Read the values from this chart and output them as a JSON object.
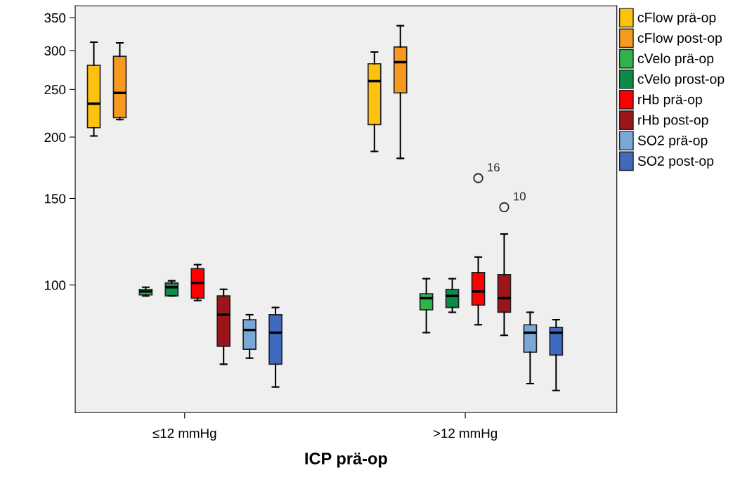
{
  "chart_data": {
    "type": "box",
    "xlabel": "ICP prä-op",
    "categories": [
      "≤12 mmHg",
      ">12 mmHg"
    ],
    "log": true,
    "ylim": [
      55,
      370
    ],
    "yticks": [
      100,
      150,
      200,
      250,
      300,
      350
    ],
    "grid": false,
    "legend": "top right",
    "series": [
      {
        "name": "cFlow prä-op",
        "color": "#fdc10e",
        "boxes": [
          {
            "low": 201,
            "q1": 209,
            "median": 234,
            "q3": 280,
            "high": 312
          },
          {
            "low": 187,
            "q1": 212,
            "median": 260,
            "q3": 282,
            "high": 298
          }
        ]
      },
      {
        "name": "cFlow post-op",
        "color": "#f7991f",
        "boxes": [
          {
            "low": 217,
            "q1": 219,
            "median": 246,
            "q3": 292,
            "high": 311
          },
          {
            "low": 181,
            "q1": 246,
            "median": 284,
            "q3": 305,
            "high": 337
          }
        ]
      },
      {
        "name": "cVelo prä-op",
        "color": "#2fb34a",
        "boxes": [
          {
            "low": 95,
            "q1": 95.5,
            "median": 97,
            "q3": 98,
            "high": 99
          },
          {
            "low": 80,
            "q1": 89,
            "median": 94,
            "q3": 96,
            "high": 103
          }
        ]
      },
      {
        "name": "cVelo prost-op",
        "color": "#0c8a48",
        "boxes": [
          {
            "low": 95,
            "q1": 95,
            "median": 99,
            "q3": 101,
            "high": 102
          },
          {
            "low": 88,
            "q1": 90,
            "median": 95,
            "q3": 98,
            "high": 103
          }
        ]
      },
      {
        "name": "rHb prä-op",
        "color": "#ff0000",
        "boxes": [
          {
            "low": 93,
            "q1": 94,
            "median": 101,
            "q3": 108,
            "high": 110
          },
          {
            "low": 83,
            "q1": 91,
            "median": 97,
            "q3": 106,
            "high": 114,
            "outliers": [
              165
            ]
          }
        ]
      },
      {
        "name": "rHb post-op",
        "color": "#9c1619",
        "boxes": [
          {
            "low": 69,
            "q1": 75,
            "median": 87,
            "q3": 95,
            "high": 98
          },
          {
            "low": 79,
            "q1": 88,
            "median": 94,
            "q3": 105,
            "high": 127,
            "outliers": [
              144
            ]
          }
        ]
      },
      {
        "name": "SO2 prä-op",
        "color": "#7ba7d6",
        "boxes": [
          {
            "low": 71,
            "q1": 74,
            "median": 81,
            "q3": 85,
            "high": 87
          },
          {
            "low": 63,
            "q1": 73,
            "median": 80,
            "q3": 83,
            "high": 88
          }
        ]
      },
      {
        "name": "SO2 post-op",
        "color": "#3e6bbf",
        "boxes": [
          {
            "low": 62,
            "q1": 69,
            "median": 80,
            "q3": 87,
            "high": 90
          },
          {
            "low": 61,
            "q1": 72,
            "median": 80,
            "q3": 82,
            "high": 85
          }
        ]
      }
    ],
    "annotations": [
      "16",
      "10"
    ]
  }
}
